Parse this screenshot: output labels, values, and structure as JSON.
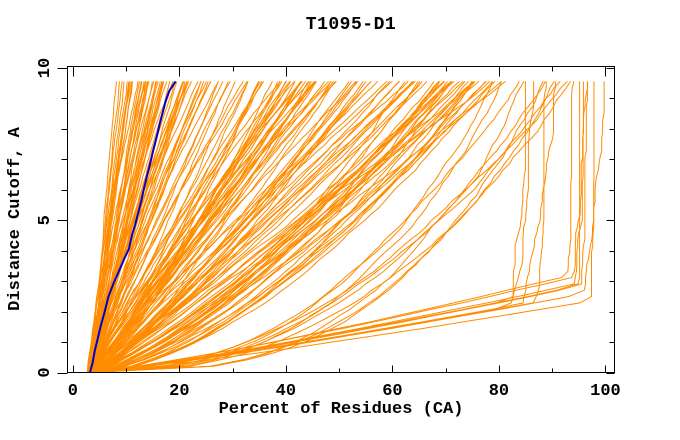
{
  "title": "T1095-D1",
  "colors": {
    "ensemble_orange": "#FF8C00",
    "highlight_blue": "#0000CC",
    "axis_black": "#000000",
    "background": "#FFFFFF"
  },
  "chart_data": {
    "type": "line",
    "title": "T1095-D1",
    "xlabel": "Percent of Residues (CA)",
    "ylabel": "Distance Cutoff, A",
    "xlim": [
      -1,
      101.7
    ],
    "ylim": [
      0,
      10.05
    ],
    "grid": false,
    "legend": "none",
    "x_major_ticks": [
      0,
      20,
      40,
      60,
      80,
      100
    ],
    "x_minor_ticks": [
      10,
      30,
      50,
      70,
      90
    ],
    "y_major_ticks": [
      0,
      5,
      10
    ],
    "y_minor_ticks": [
      1,
      2,
      3,
      4,
      6,
      7,
      8,
      9
    ],
    "curve_y_max": 9.56,
    "series": [
      {
        "name": "highlighted-model",
        "color": "#0000CC",
        "points": [
          [
            3.2,
            0
          ],
          [
            3.7,
            0.3
          ],
          [
            4.1,
            0.7
          ],
          [
            4.6,
            1.05
          ],
          [
            5.2,
            1.5
          ],
          [
            5.9,
            1.95
          ],
          [
            6.7,
            2.5
          ],
          [
            7.7,
            2.95
          ],
          [
            8.7,
            3.35
          ],
          [
            9.7,
            3.75
          ],
          [
            10.5,
            4.05
          ],
          [
            11.1,
            4.5
          ],
          [
            11.7,
            4.85
          ],
          [
            12.3,
            5.25
          ],
          [
            12.8,
            5.6
          ],
          [
            13.3,
            6.0
          ],
          [
            13.9,
            6.45
          ],
          [
            14.5,
            6.85
          ],
          [
            15.1,
            7.3
          ],
          [
            15.7,
            7.7
          ],
          [
            16.3,
            8.15
          ],
          [
            16.9,
            8.55
          ],
          [
            17.4,
            8.9
          ],
          [
            18.1,
            9.25
          ],
          [
            19.3,
            9.56
          ]
        ]
      }
    ],
    "ensemble": {
      "name": "server-model-curves",
      "color": "#FF8C00",
      "count": 179,
      "seed": 1095,
      "start_x_range": [
        2.6,
        4.5
      ],
      "groups": [
        {
          "count": 58,
          "top_x": [
            7.5,
            28
          ],
          "shape": [
            0.9,
            1.3
          ]
        },
        {
          "count": 60,
          "top_x": [
            28,
            62
          ],
          "shape": [
            0.75,
            1.15
          ]
        },
        {
          "count": 40,
          "top_x": [
            62,
            80
          ],
          "shape": [
            0.55,
            0.95
          ]
        },
        {
          "count": 10,
          "top_x": [
            81,
            93
          ],
          "shape": [
            0.33,
            0.5
          ]
        },
        {
          "count": 7,
          "top_x": [
            95.5,
            99.3
          ],
          "shape": [
            0.85,
            1.0
          ],
          "bend": {
            "y": [
              2.0,
              3.2
            ],
            "gap": [
              1.0,
              2.5
            ]
          }
        },
        {
          "count": 4,
          "top_x": [
            84,
            90
          ],
          "shape": [
            0.9,
            1.0
          ],
          "bend": {
            "y": [
              1.7,
              2.4
            ],
            "gap": [
              3.0,
              5.0
            ]
          }
        }
      ]
    }
  }
}
